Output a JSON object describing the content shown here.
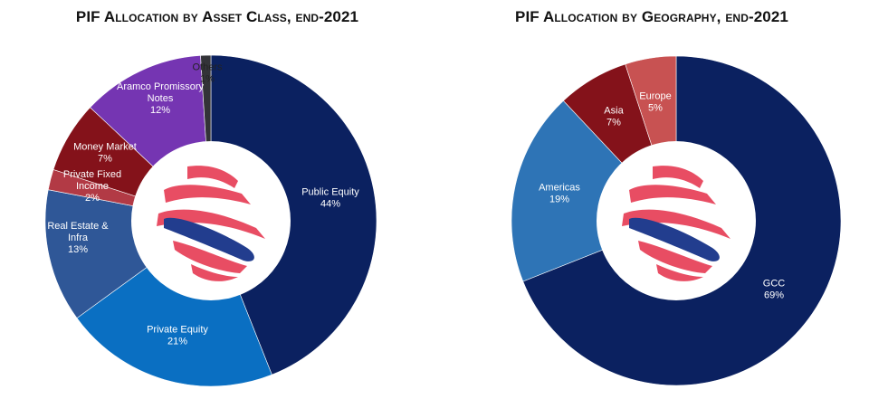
{
  "chart_data": [
    {
      "type": "pie",
      "title": "PIF Allocation by Asset Class, end-2021",
      "categories": [
        "Public Equity",
        "Private Equity",
        "Real Estate & Infra",
        "Private Fixed Income",
        "Money Market",
        "Aramco Promissory Notes",
        "Others"
      ],
      "values": [
        44,
        21,
        13,
        2,
        7,
        12,
        1
      ],
      "labels": [
        [
          "Public Equity",
          "44%"
        ],
        [
          "Private Equity",
          "21%"
        ],
        [
          "Real Estate &",
          "Infra",
          "13%"
        ],
        [
          "Private Fixed",
          "Income",
          "2%"
        ],
        [
          "Money Market",
          "7%"
        ],
        [
          "Aramco Promissory",
          "Notes",
          "12%"
        ],
        [
          "Others",
          "1%"
        ]
      ],
      "colors": [
        "#0b2160",
        "#0a6fc2",
        "#2f5797",
        "#b23a45",
        "#84121a",
        "#7535b2",
        "#333338"
      ],
      "donut": true,
      "legend": "none"
    },
    {
      "type": "pie",
      "title": "PIF Allocation by Geography, end-2021",
      "categories": [
        "GCC",
        "Americas",
        "Asia",
        "Europe"
      ],
      "values": [
        69,
        19,
        7,
        5
      ],
      "labels": [
        [
          "GCC",
          "69%"
        ],
        [
          "Americas",
          "19%"
        ],
        [
          "Asia",
          "7%"
        ],
        [
          "Europe",
          "5%"
        ]
      ],
      "colors": [
        "#0b2160",
        "#2e74b6",
        "#84121a",
        "#c85252"
      ],
      "donut": true,
      "legend": "none"
    }
  ],
  "logo": {
    "colors": {
      "stripe": "#e84d63",
      "band": "#223d8e"
    }
  }
}
